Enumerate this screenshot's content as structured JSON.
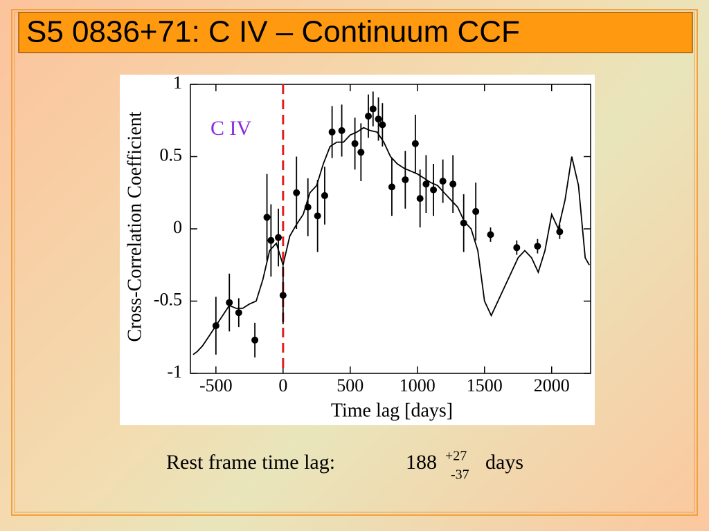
{
  "title": "S5 0836+71:  C IV – Continuum  CCF",
  "chart_data": {
    "type": "scatter",
    "xlabel": "Time lag [days]",
    "ylabel": "Cross-Correlation Coefficient",
    "annotation": "C IV",
    "xlim": [
      -690,
      2290
    ],
    "ylim": [
      -1,
      1
    ],
    "xticks": [
      -500,
      0,
      500,
      1000,
      1500,
      2000
    ],
    "yticks": [
      -1,
      -0.5,
      0,
      0.5,
      1
    ],
    "reference_x": 0,
    "reference_color": "#e02020",
    "points": {
      "color": "#000000",
      "x": [
        -500,
        -400,
        -330,
        -210,
        -120,
        -90,
        -35,
        0,
        100,
        185,
        257,
        310,
        365,
        437,
        535,
        580,
        635,
        670,
        710,
        740,
        810,
        910,
        985,
        1020,
        1065,
        1120,
        1190,
        1265,
        1345,
        1435,
        1545,
        1740,
        1895,
        2060
      ],
      "values": [
        -0.67,
        -0.51,
        -0.58,
        -0.77,
        0.08,
        -0.08,
        -0.06,
        -0.46,
        0.25,
        0.15,
        0.09,
        0.23,
        0.67,
        0.68,
        0.59,
        0.53,
        0.78,
        0.83,
        0.76,
        0.72,
        0.29,
        0.34,
        0.59,
        0.21,
        0.31,
        0.27,
        0.33,
        0.31,
        0.04,
        0.12,
        -0.04,
        -0.13,
        -0.12,
        -0.02
      ],
      "errors": [
        0.2,
        0.2,
        0.1,
        0.12,
        0.3,
        0.25,
        0.2,
        0.2,
        0.25,
        0.2,
        0.25,
        0.2,
        0.18,
        0.18,
        0.18,
        0.2,
        0.15,
        0.12,
        0.15,
        0.15,
        0.2,
        0.2,
        0.2,
        0.2,
        0.2,
        0.18,
        0.15,
        0.2,
        0.2,
        0.2,
        0.05,
        0.05,
        0.05,
        0.05
      ]
    },
    "curve": {
      "color": "#000000",
      "x": [
        -670,
        -640,
        -600,
        -550,
        -500,
        -450,
        -400,
        -350,
        -300,
        -250,
        -200,
        -150,
        -100,
        -50,
        0,
        50,
        100,
        150,
        200,
        250,
        300,
        350,
        400,
        450,
        500,
        550,
        600,
        650,
        700,
        750,
        800,
        850,
        900,
        950,
        1000,
        1050,
        1100,
        1150,
        1200,
        1250,
        1300,
        1350,
        1400,
        1450,
        1500,
        1550,
        1600,
        1650,
        1700,
        1750,
        1800,
        1850,
        1900,
        1950,
        2000,
        2050,
        2100,
        2150,
        2200,
        2250,
        2280
      ],
      "values": [
        -0.87,
        -0.85,
        -0.81,
        -0.74,
        -0.67,
        -0.6,
        -0.53,
        -0.55,
        -0.55,
        -0.52,
        -0.5,
        -0.35,
        -0.15,
        -0.1,
        -0.25,
        -0.05,
        0.03,
        0.1,
        0.25,
        0.3,
        0.45,
        0.57,
        0.6,
        0.6,
        0.65,
        0.67,
        0.7,
        0.68,
        0.67,
        0.6,
        0.5,
        0.45,
        0.42,
        0.4,
        0.38,
        0.35,
        0.32,
        0.3,
        0.25,
        0.2,
        0.15,
        0.05,
        0.0,
        -0.15,
        -0.5,
        -0.6,
        -0.5,
        -0.4,
        -0.3,
        -0.2,
        -0.15,
        -0.2,
        -0.3,
        -0.15,
        0.1,
        0.0,
        0.2,
        0.5,
        0.3,
        -0.2,
        -0.25
      ]
    }
  },
  "caption": {
    "text": "Rest frame time lag:",
    "value": "188",
    "upper": "+27",
    "lower": "-37",
    "unit": "days"
  }
}
